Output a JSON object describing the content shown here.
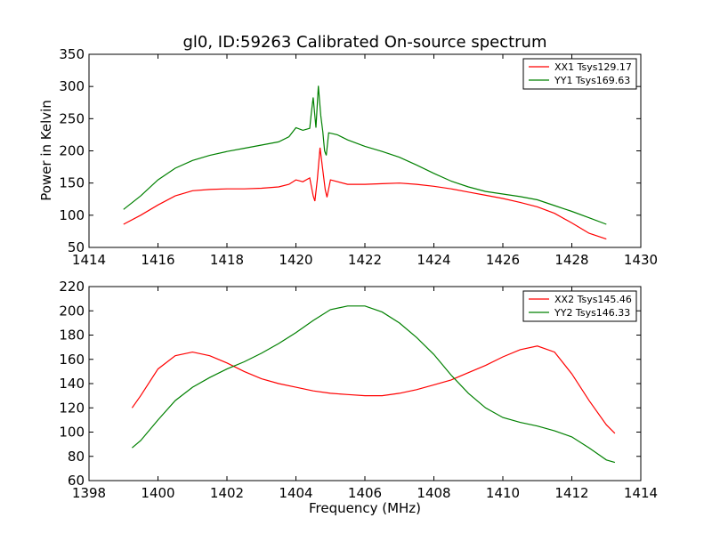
{
  "chart_data": [
    {
      "type": "line",
      "title": "gl0, ID:59263 Calibrated On-source spectrum",
      "xlabel": "",
      "ylabel": "Power in Kelvin",
      "xlim": [
        1414,
        1430
      ],
      "ylim": [
        50,
        350
      ],
      "xticks": [
        1414,
        1416,
        1418,
        1420,
        1422,
        1424,
        1426,
        1428,
        1430
      ],
      "yticks": [
        50,
        100,
        150,
        200,
        250,
        300,
        350
      ],
      "grid": false,
      "legend": "top-right",
      "series": [
        {
          "name": "XX1 Tsys129.17",
          "color": "#ff0000",
          "points": [
            [
              1415,
              86
            ],
            [
              1415.5,
              100
            ],
            [
              1416,
              116
            ],
            [
              1416.5,
              130
            ],
            [
              1417,
              138
            ],
            [
              1417.5,
              140
            ],
            [
              1418,
              141
            ],
            [
              1418.5,
              141
            ],
            [
              1419,
              142
            ],
            [
              1419.5,
              144
            ],
            [
              1419.8,
              148
            ],
            [
              1420,
              155
            ],
            [
              1420.2,
              152
            ],
            [
              1420.4,
              158
            ],
            [
              1420.5,
              130
            ],
            [
              1420.55,
              122
            ],
            [
              1420.62,
              155
            ],
            [
              1420.7,
              205
            ],
            [
              1420.78,
              170
            ],
            [
              1420.85,
              140
            ],
            [
              1420.9,
              128
            ],
            [
              1421,
              155
            ],
            [
              1421.5,
              148
            ],
            [
              1422,
              148
            ],
            [
              1422.5,
              149
            ],
            [
              1423,
              150
            ],
            [
              1423.5,
              148
            ],
            [
              1424,
              145
            ],
            [
              1424.5,
              141
            ],
            [
              1425,
              136
            ],
            [
              1425.5,
              131
            ],
            [
              1426,
              126
            ],
            [
              1426.5,
              120
            ],
            [
              1427,
              113
            ],
            [
              1427.5,
              103
            ],
            [
              1428,
              88
            ],
            [
              1428.5,
              72
            ],
            [
              1429,
              63
            ]
          ]
        },
        {
          "name": "YY1 Tsys169.63",
          "color": "#008000",
          "points": [
            [
              1415,
              109
            ],
            [
              1415.5,
              130
            ],
            [
              1416,
              155
            ],
            [
              1416.5,
              173
            ],
            [
              1417,
              185
            ],
            [
              1417.5,
              193
            ],
            [
              1418,
              199
            ],
            [
              1418.5,
              204
            ],
            [
              1419,
              209
            ],
            [
              1419.5,
              214
            ],
            [
              1419.8,
              222
            ],
            [
              1420,
              236
            ],
            [
              1420.2,
              232
            ],
            [
              1420.4,
              235
            ],
            [
              1420.45,
              260
            ],
            [
              1420.5,
              283
            ],
            [
              1420.58,
              236
            ],
            [
              1420.65,
              301
            ],
            [
              1420.72,
              255
            ],
            [
              1420.78,
              230
            ],
            [
              1420.83,
              200
            ],
            [
              1420.88,
              193
            ],
            [
              1420.95,
              228
            ],
            [
              1421.2,
              225
            ],
            [
              1421.5,
              217
            ],
            [
              1422,
              207
            ],
            [
              1422.5,
              199
            ],
            [
              1423,
              190
            ],
            [
              1423.5,
              178
            ],
            [
              1424,
              165
            ],
            [
              1424.5,
              153
            ],
            [
              1425,
              144
            ],
            [
              1425.5,
              137
            ],
            [
              1426,
              133
            ],
            [
              1426.5,
              129
            ],
            [
              1427,
              124
            ],
            [
              1427.5,
              115
            ],
            [
              1428,
              106
            ],
            [
              1428.5,
              96
            ],
            [
              1429,
              86
            ]
          ]
        }
      ]
    },
    {
      "type": "line",
      "title": "",
      "xlabel": "Frequency (MHz)",
      "ylabel": "",
      "xlim": [
        1398,
        1414
      ],
      "ylim": [
        60,
        220
      ],
      "xticks": [
        1398,
        1400,
        1402,
        1404,
        1406,
        1408,
        1410,
        1412,
        1414
      ],
      "yticks": [
        60,
        80,
        100,
        120,
        140,
        160,
        180,
        200,
        220
      ],
      "grid": false,
      "legend": "top-right",
      "series": [
        {
          "name": "XX2 Tsys145.46",
          "color": "#ff0000",
          "points": [
            [
              1399.25,
              120
            ],
            [
              1399.5,
              130
            ],
            [
              1400,
              152
            ],
            [
              1400.5,
              163
            ],
            [
              1401,
              166
            ],
            [
              1401.5,
              163
            ],
            [
              1402,
              157
            ],
            [
              1402.5,
              150
            ],
            [
              1403,
              144
            ],
            [
              1403.5,
              140
            ],
            [
              1404,
              137
            ],
            [
              1404.5,
              134
            ],
            [
              1405,
              132
            ],
            [
              1405.5,
              131
            ],
            [
              1406,
              130
            ],
            [
              1406.5,
              130
            ],
            [
              1407,
              132
            ],
            [
              1407.5,
              135
            ],
            [
              1408,
              139
            ],
            [
              1408.5,
              143
            ],
            [
              1409,
              149
            ],
            [
              1409.5,
              155
            ],
            [
              1410,
              162
            ],
            [
              1410.5,
              168
            ],
            [
              1411,
              171
            ],
            [
              1411.5,
              166
            ],
            [
              1412,
              148
            ],
            [
              1412.5,
              126
            ],
            [
              1413,
              106
            ],
            [
              1413.25,
              99
            ]
          ]
        },
        {
          "name": "YY2 Tsys146.33",
          "color": "#008000",
          "points": [
            [
              1399.25,
              87
            ],
            [
              1399.5,
              93
            ],
            [
              1400,
              110
            ],
            [
              1400.5,
              126
            ],
            [
              1401,
              137
            ],
            [
              1401.5,
              145
            ],
            [
              1402,
              152
            ],
            [
              1402.5,
              158
            ],
            [
              1403,
              165
            ],
            [
              1403.5,
              173
            ],
            [
              1404,
              182
            ],
            [
              1404.5,
              192
            ],
            [
              1405,
              201
            ],
            [
              1405.5,
              204
            ],
            [
              1406,
              204
            ],
            [
              1406.5,
              199
            ],
            [
              1407,
              190
            ],
            [
              1407.5,
              178
            ],
            [
              1408,
              164
            ],
            [
              1408.5,
              147
            ],
            [
              1409,
              132
            ],
            [
              1409.5,
              120
            ],
            [
              1410,
              112
            ],
            [
              1410.5,
              108
            ],
            [
              1411,
              105
            ],
            [
              1411.5,
              101
            ],
            [
              1412,
              96
            ],
            [
              1412.5,
              87
            ],
            [
              1413,
              77
            ],
            [
              1413.25,
              75
            ]
          ]
        }
      ]
    }
  ]
}
